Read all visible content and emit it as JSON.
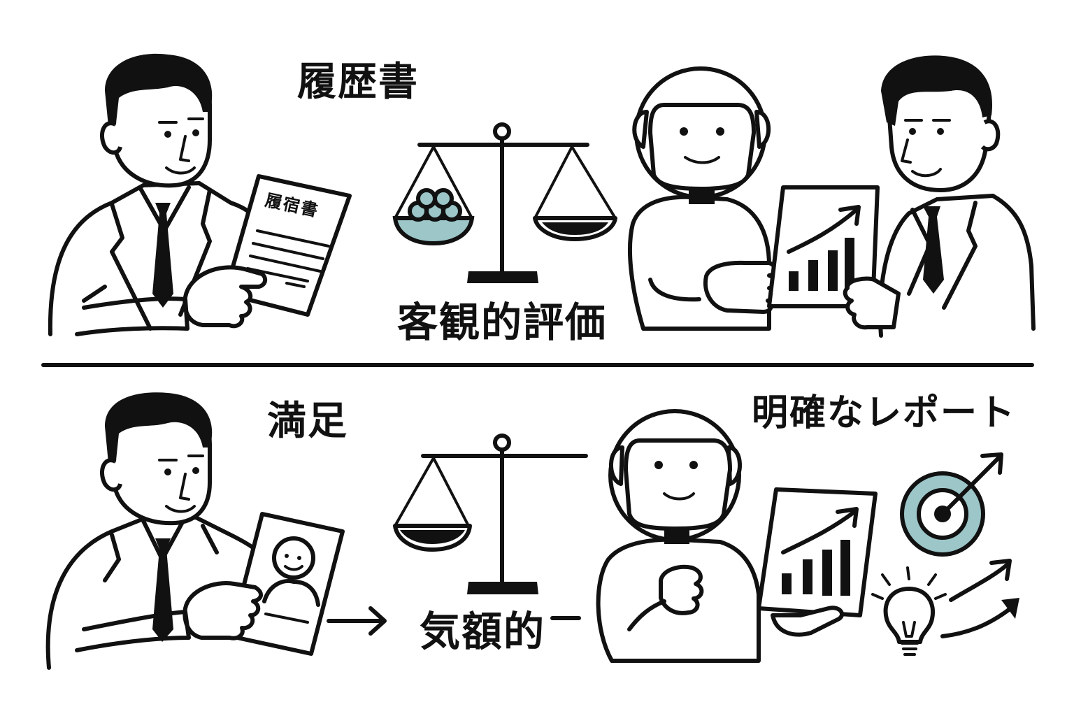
{
  "colors": {
    "ink": "#111111",
    "accent": "#9cc6c8",
    "background": "#ffffff"
  },
  "top": {
    "resume_caption": "履歴書",
    "document_title": "履宿書",
    "objective_caption": "客観的評価"
  },
  "bottom": {
    "satisfaction_caption": "満足",
    "subjective_caption": "気額的",
    "report_caption": "明確なレポート"
  },
  "icons": [
    "businessman",
    "resume-document",
    "balance-scale",
    "robot",
    "growth-chart",
    "arrow-right",
    "target",
    "light-bulb",
    "trend-arrow",
    "profile-card"
  ]
}
